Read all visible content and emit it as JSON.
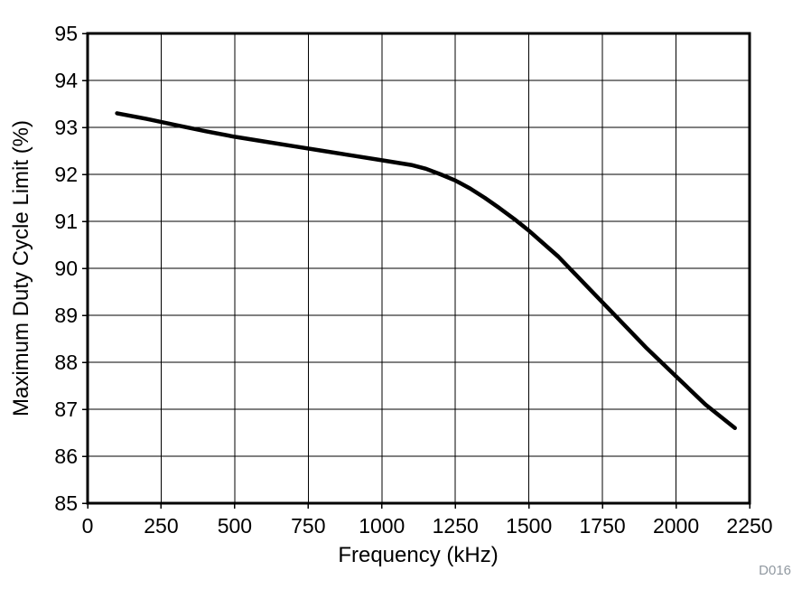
{
  "figure": {
    "id_label": "D016"
  },
  "colors": {
    "background": "#ffffff",
    "curve": "#000000",
    "grid": "#000000",
    "axis": "#000000",
    "figure_tag": "#9199a1"
  },
  "chart_data": {
    "type": "line",
    "title": "",
    "xlabel": "Frequency (kHz)",
    "ylabel": "Maximum Duty Cycle Limit (%)",
    "xlim": [
      0,
      2250
    ],
    "ylim": [
      85,
      95
    ],
    "x_ticks": [
      0,
      250,
      500,
      750,
      1000,
      1250,
      1500,
      1750,
      2000,
      2250
    ],
    "y_ticks": [
      85,
      86,
      87,
      88,
      89,
      90,
      91,
      92,
      93,
      94,
      95
    ],
    "grid": true,
    "legend_position": "none",
    "series": [
      {
        "name": "Maximum Duty Cycle Limit",
        "color": "#000000",
        "stroke_width": 4.5,
        "x": [
          100,
          200,
          300,
          400,
          500,
          600,
          700,
          800,
          900,
          1000,
          1100,
          1150,
          1200,
          1250,
          1300,
          1350,
          1400,
          1450,
          1500,
          1600,
          1700,
          1800,
          1900,
          2000,
          2100,
          2200
        ],
        "y": [
          93.3,
          93.18,
          93.05,
          92.92,
          92.8,
          92.7,
          92.6,
          92.5,
          92.4,
          92.3,
          92.2,
          92.12,
          92.0,
          91.87,
          91.7,
          91.5,
          91.28,
          91.05,
          90.8,
          90.25,
          89.6,
          88.95,
          88.3,
          87.7,
          87.1,
          86.6
        ]
      }
    ]
  }
}
